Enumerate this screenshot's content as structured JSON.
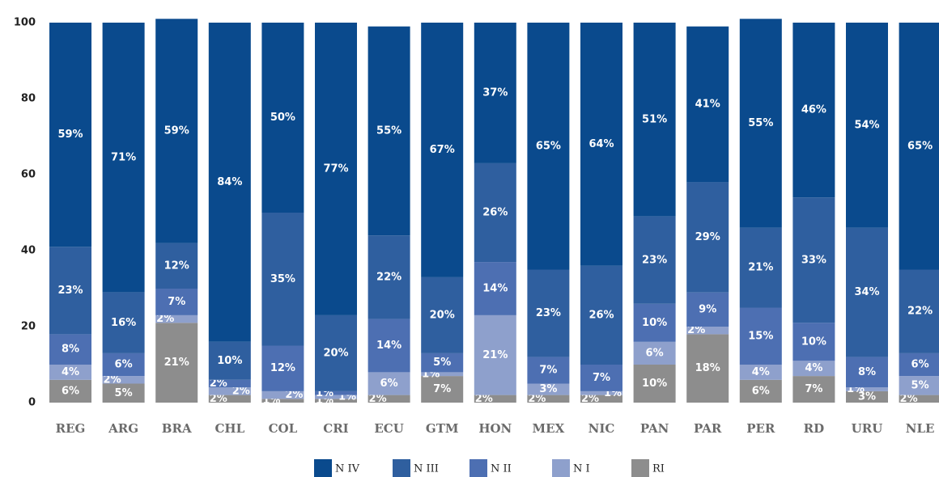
{
  "chart_data": {
    "type": "bar",
    "stacked": true,
    "categories": [
      "REG",
      "ARG",
      "BRA",
      "CHL",
      "COL",
      "CRI",
      "ECU",
      "GTM",
      "HON",
      "MEX",
      "NIC",
      "PAN",
      "PAR",
      "PER",
      "RD",
      "URU",
      "NLE"
    ],
    "ylim": [
      0,
      100
    ],
    "yticks": [
      0,
      20,
      40,
      60,
      80,
      100
    ],
    "grid": false,
    "legend": "bottom",
    "series": [
      {
        "name": "N IV",
        "color": "#0a4a8d",
        "values": [
          59,
          71,
          59,
          84,
          50,
          77,
          55,
          67,
          37,
          65,
          64,
          51,
          41,
          55,
          46,
          54,
          65
        ],
        "value_labels": [
          "59%",
          "71%",
          "59%",
          "84%",
          "50%",
          "77%",
          "55%",
          "67%",
          "37%",
          "65%",
          "64%",
          "51%",
          "41%",
          "55%",
          "46%",
          "54%",
          "65%"
        ]
      },
      {
        "name": "N III",
        "color": "#2f5f9f",
        "values": [
          23,
          16,
          12,
          10,
          35,
          20,
          22,
          20,
          26,
          23,
          26,
          23,
          29,
          21,
          33,
          34,
          22
        ],
        "value_labels": [
          "23%",
          "16%",
          "12%",
          "10%",
          "35%",
          "20%",
          "22%",
          "20%",
          "26%",
          "23%",
          "26%",
          "23%",
          "29%",
          "21%",
          "33%",
          "34%",
          "22%"
        ]
      },
      {
        "name": "N II",
        "color": "#4d6fb2",
        "values": [
          8,
          6,
          7,
          2,
          12,
          1,
          14,
          5,
          14,
          7,
          7,
          10,
          9,
          15,
          10,
          8,
          6
        ],
        "value_labels": [
          "8%",
          "6%",
          "7%",
          "2%",
          "12%",
          "1%",
          "14%",
          "5%",
          "14%",
          "7%",
          "7%",
          "10%",
          "9%",
          "15%",
          "10%",
          "8%",
          "6%"
        ]
      },
      {
        "name": "N I",
        "color": "#8ea0cc",
        "values": [
          4,
          2,
          2,
          2,
          2,
          1,
          6,
          1,
          21,
          3,
          1,
          6,
          2,
          4,
          4,
          1,
          5
        ],
        "value_labels": [
          "4%",
          "2%",
          "2%",
          "2%",
          "2%",
          "1%",
          "6%",
          "1%",
          "21%",
          "3%",
          "1%",
          "6%",
          "2%",
          "4%",
          "4%",
          "1%",
          "5%"
        ]
      },
      {
        "name": "RI",
        "color": "#8d8d8d",
        "values": [
          6,
          5,
          21,
          2,
          1,
          1,
          2,
          7,
          2,
          2,
          2,
          10,
          18,
          6,
          7,
          3,
          2
        ],
        "value_labels": [
          "6%",
          "5%",
          "21%",
          "2%",
          "1%",
          "1%",
          "2%",
          "7%",
          "2%",
          "2%",
          "2%",
          "10%",
          "18%",
          "6%",
          "7%",
          "3%",
          "2%"
        ]
      }
    ]
  }
}
